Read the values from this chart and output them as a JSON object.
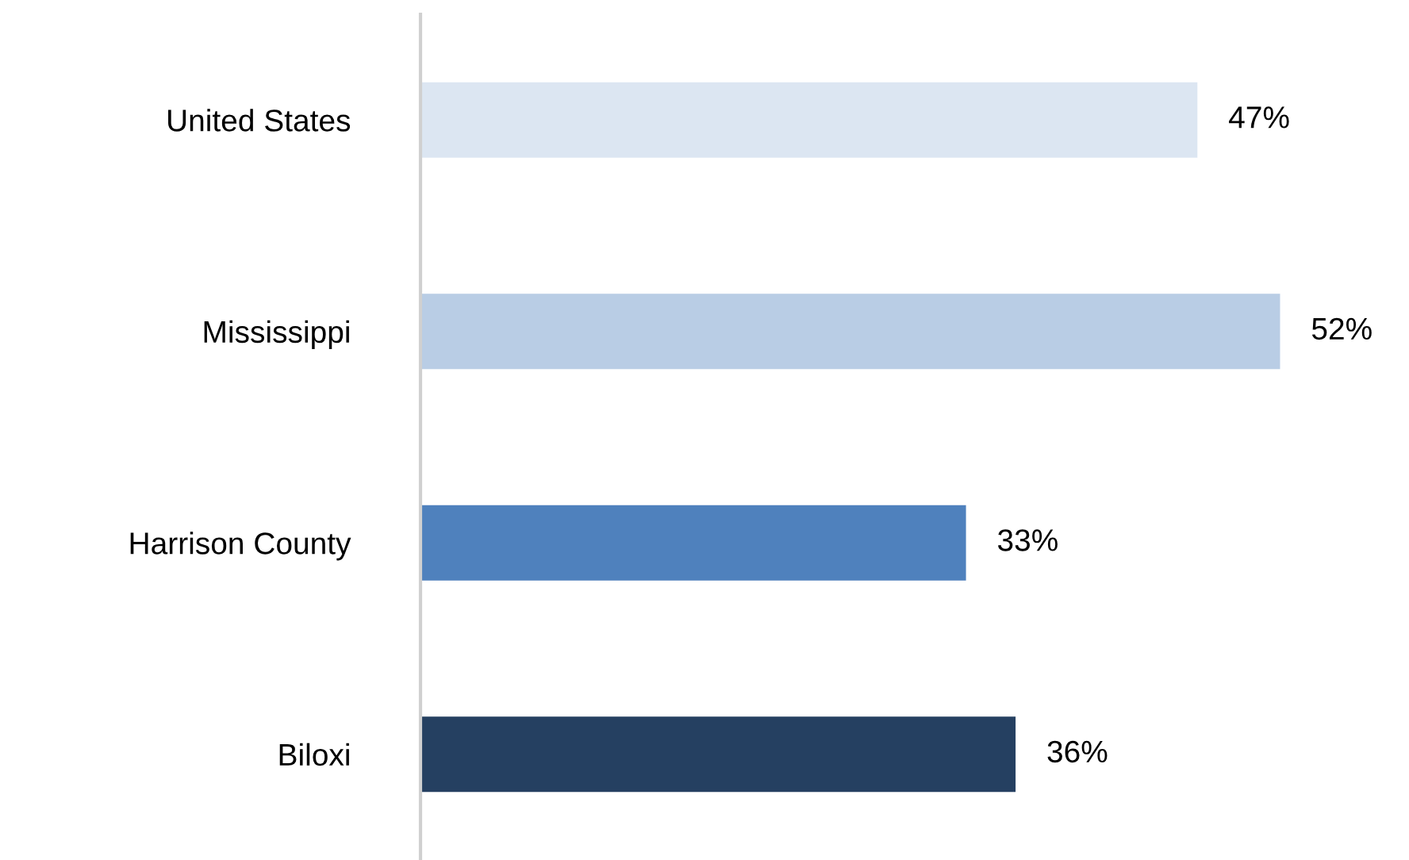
{
  "chart_data": {
    "type": "bar",
    "orientation": "horizontal",
    "categories": [
      "United States",
      "Mississippi",
      "Harrison County",
      "Biloxi"
    ],
    "values": [
      47,
      52,
      33,
      36
    ],
    "colors": [
      "#dce6f2",
      "#b9cde5",
      "#4f81bd",
      "#254061"
    ],
    "value_labels": [
      "47%",
      "52%",
      "33%",
      "36%"
    ],
    "tick_labels": "y",
    "grid": false,
    "legend": false
  }
}
